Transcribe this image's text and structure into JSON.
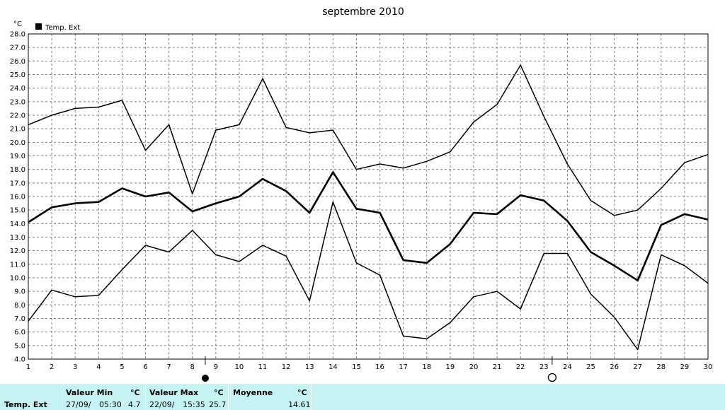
{
  "chart_data": {
    "type": "line",
    "title": "septembre 2010",
    "unit_label": "°C",
    "legend": {
      "label": "Temp. Ext",
      "position": "top-left"
    },
    "ylim": [
      4.0,
      28.0
    ],
    "yticks": [
      "4.0",
      "5.0",
      "6.0",
      "7.0",
      "8.0",
      "9.0",
      "10.0",
      "11.0",
      "12.0",
      "13.0",
      "14.0",
      "15.0",
      "16.0",
      "17.0",
      "18.0",
      "19.0",
      "20.0",
      "21.0",
      "22.0",
      "23.0",
      "24.0",
      "25.0",
      "26.0",
      "27.0",
      "28.0"
    ],
    "x": [
      "1",
      "2",
      "3",
      "4",
      "5",
      "6",
      "7",
      "8",
      "9",
      "10",
      "11",
      "12",
      "13",
      "14",
      "15",
      "16",
      "17",
      "18",
      "19",
      "20",
      "21",
      "22",
      "23",
      "24",
      "25",
      "26",
      "27",
      "28",
      "29",
      "30"
    ],
    "grid": true,
    "series": [
      {
        "role": "max",
        "values": [
          21.3,
          22.0,
          22.5,
          22.6,
          23.1,
          19.4,
          21.3,
          16.2,
          20.9,
          21.3,
          24.7,
          21.1,
          20.7,
          20.9,
          18.0,
          18.4,
          18.1,
          18.6,
          19.3,
          21.5,
          22.8,
          25.7,
          21.9,
          18.4,
          15.7,
          14.6,
          15.0,
          16.6,
          18.5,
          19.1
        ]
      },
      {
        "role": "mean",
        "values": [
          14.1,
          15.2,
          15.5,
          15.6,
          16.6,
          16.0,
          16.3,
          14.9,
          15.5,
          16.0,
          17.3,
          16.4,
          14.8,
          17.8,
          15.1,
          14.8,
          11.3,
          11.1,
          12.5,
          14.8,
          14.7,
          16.1,
          15.7,
          14.2,
          11.9,
          10.9,
          9.8,
          13.9,
          14.7,
          14.3
        ]
      },
      {
        "role": "min",
        "values": [
          6.8,
          9.1,
          8.6,
          8.7,
          10.6,
          12.4,
          11.9,
          13.5,
          11.7,
          11.2,
          12.4,
          11.6,
          8.3,
          15.6,
          11.1,
          10.2,
          5.7,
          5.5,
          6.7,
          8.6,
          9.0,
          7.7,
          11.8,
          11.8,
          8.8,
          7.1,
          4.7,
          11.7,
          10.9,
          9.6
        ]
      }
    ],
    "moon_markers": [
      {
        "phase": "full",
        "day": 8.55
      },
      {
        "phase": "new",
        "day": 23.35
      }
    ]
  },
  "footer": {
    "row_label": "Temp. Ext",
    "min": {
      "header": "Valeur Min",
      "unit": "°C",
      "date": "27/09/",
      "time": "05:30",
      "value": "4.7"
    },
    "max": {
      "header": "Valeur Max",
      "unit": "°C",
      "date": "22/09/",
      "time": "15:35",
      "value": "25.7"
    },
    "mean": {
      "header": "Moyenne",
      "unit": "°C",
      "value": "14.61"
    }
  }
}
